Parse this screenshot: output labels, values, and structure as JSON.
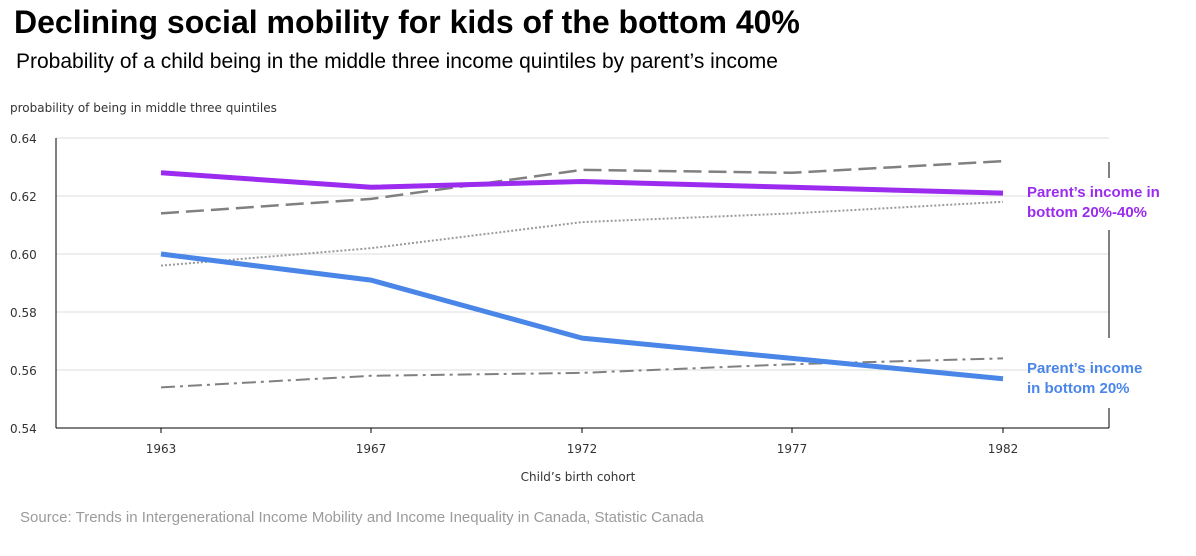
{
  "title": "Declining social mobility for kids of the bottom 40%",
  "subtitle": "Probability of a child being in the middle three income quintiles by parent’s income",
  "source": "Source: Trends in Intergenerational Income Mobility and Income Inequality in Canada, Statistic Canada",
  "chart_data": {
    "type": "line",
    "title": "Declining social mobility for kids of the bottom 40%",
    "subtitle": "Probability of a child being in the middle three income quintiles by parent’s income",
    "xlabel": "Child’s birth cohort",
    "ylabel": "probability of being in middle three quintiles",
    "categories": [
      "1963",
      "1967",
      "1972",
      "1977",
      "1982"
    ],
    "x": [
      1963,
      1967,
      1972,
      1977,
      1982
    ],
    "ylim": [
      0.54,
      0.64
    ],
    "yticks": [
      0.54,
      0.56,
      0.58,
      0.6,
      0.62,
      0.64
    ],
    "ytick_labels": [
      "0.54",
      "0.56",
      "0.58",
      "0.60",
      "0.62",
      "0.64"
    ],
    "grid": true,
    "series": [
      {
        "name": "Parent’s income in bottom 20%-40%",
        "label_lines": [
          "Parent’s income in",
          "bottom 20%-40%"
        ],
        "values": [
          0.628,
          0.623,
          0.625,
          0.623,
          0.621
        ],
        "color": "#9b2bee",
        "style": "solid",
        "highlight": true
      },
      {
        "name": "Parent’s income in bottom 20%",
        "label_lines": [
          "Parent’s income",
          "in bottom 20%"
        ],
        "values": [
          0.6,
          0.591,
          0.571,
          0.564,
          0.557
        ],
        "color": "#4a86e8",
        "style": "solid",
        "highlight": true
      },
      {
        "name": "dashed",
        "values": [
          0.614,
          0.619,
          0.629,
          0.628,
          0.632
        ],
        "color": "#808080",
        "style": "dashed",
        "highlight": false
      },
      {
        "name": "dotted",
        "values": [
          0.596,
          0.602,
          0.611,
          0.614,
          0.618
        ],
        "color": "#9a9a9a",
        "style": "dotted",
        "highlight": false
      },
      {
        "name": "dash-dot",
        "values": [
          0.554,
          0.558,
          0.559,
          0.562,
          0.564
        ],
        "color": "#808080",
        "style": "dashdot",
        "highlight": false
      }
    ]
  }
}
